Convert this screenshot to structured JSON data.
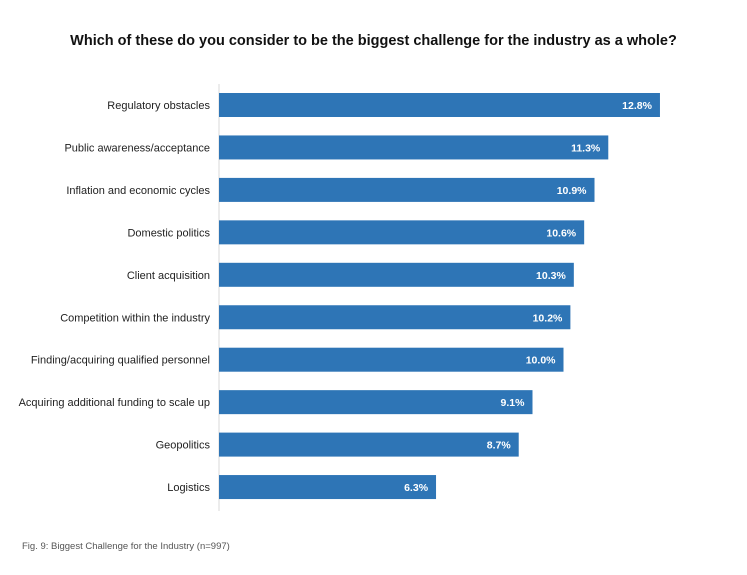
{
  "chart_data": {
    "type": "bar",
    "orientation": "horizontal",
    "title": "Which of these do you consider to be the biggest challenge for the industry as a whole?",
    "caption": "Fig. 9: Biggest Challenge for the Industry (n=997)",
    "categories": [
      "Regulatory obstacles",
      "Public awareness/acceptance",
      "Inflation and economic cycles",
      "Domestic politics",
      "Client acquisition",
      "Competition within the industry",
      "Finding/acquiring qualified personnel",
      "Acquiring additional funding to scale up",
      "Geopolitics",
      "Logistics"
    ],
    "values": [
      12.8,
      11.3,
      10.9,
      10.6,
      10.3,
      10.2,
      10.0,
      9.1,
      8.7,
      6.3
    ],
    "value_labels": [
      "12.8%",
      "11.3%",
      "10.9%",
      "10.6%",
      "10.3%",
      "10.2%",
      "10.0%",
      "9.1%",
      "8.7%",
      "6.3%"
    ],
    "unit": "%",
    "bar_color": "#2e75b6",
    "label_color": "#ffffff",
    "grid": false
  }
}
